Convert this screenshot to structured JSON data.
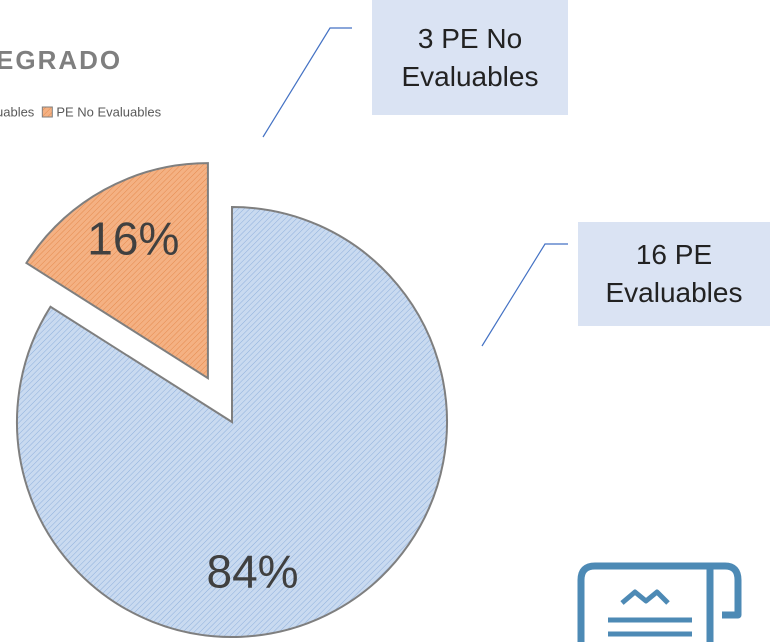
{
  "chart_data": {
    "type": "pie",
    "title": "EGRADO",
    "labels": [
      "uables",
      "PE No Evaluables"
    ],
    "values": [
      84,
      16
    ],
    "value_labels": [
      "84%",
      "16%"
    ],
    "colors": [
      "#c9daf0",
      "#f4b183"
    ],
    "exploded": [
      false,
      true
    ],
    "annotations": [
      "16 PE Evaluables",
      "3 PE No Evaluables"
    ]
  }
}
